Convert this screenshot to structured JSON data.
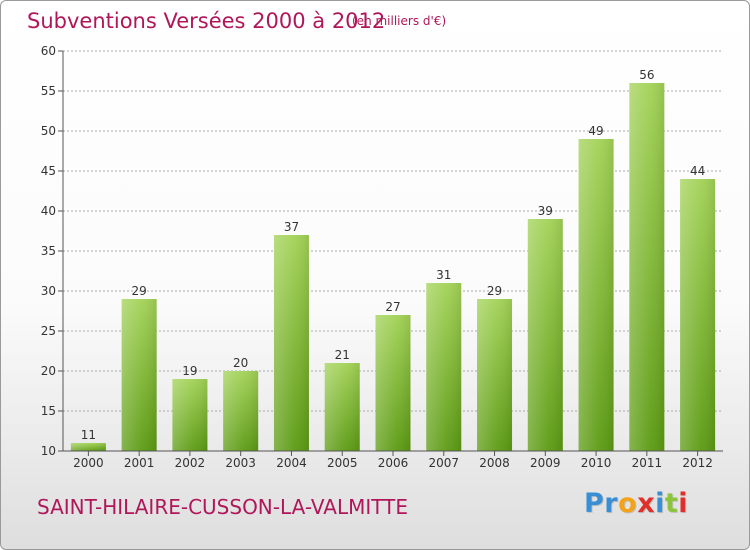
{
  "header": {
    "title": "Subventions Versées 2000 à 2012",
    "unit": "(en milliers d'€)"
  },
  "footer": {
    "commune": "SAINT-HILAIRE-CUSSON-LA-VALMITTE",
    "logo": [
      {
        "char": "P",
        "color": "#3a8fd4"
      },
      {
        "char": "r",
        "color": "#3a8fd4"
      },
      {
        "char": "o",
        "color": "#f2a21b"
      },
      {
        "char": "x",
        "color": "#e0302a"
      },
      {
        "char": "i",
        "color": "#3a8fd4"
      },
      {
        "char": "t",
        "color": "#8cc43c"
      },
      {
        "char": "i",
        "color": "#e0302a"
      }
    ]
  },
  "colors": {
    "title": "#b0175a",
    "bar_light": "#a2d256",
    "bar_dark": "#5b9a12",
    "axis": "#555555",
    "grid": "#aaaaaa"
  },
  "chart_data": {
    "type": "bar",
    "categories": [
      "2000",
      "2001",
      "2002",
      "2003",
      "2004",
      "2005",
      "2006",
      "2007",
      "2008",
      "2009",
      "2010",
      "2011",
      "2012"
    ],
    "values": [
      11,
      29,
      19,
      20,
      37,
      21,
      27,
      31,
      29,
      39,
      49,
      56,
      44
    ],
    "ylim": [
      10,
      60
    ],
    "yticks": [
      10,
      15,
      20,
      25,
      30,
      35,
      40,
      45,
      50,
      55,
      60
    ],
    "grid": true,
    "data_labels": true
  }
}
